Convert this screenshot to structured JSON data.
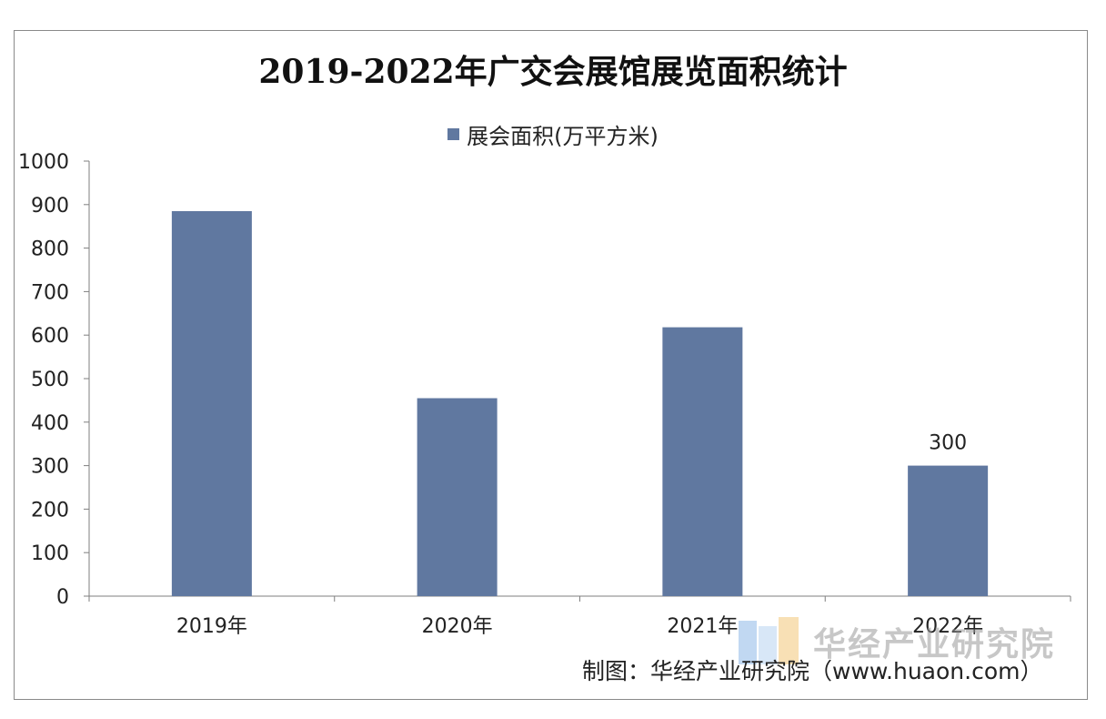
{
  "chart_data": {
    "type": "bar",
    "title": "2019-2022年广交会展馆展览面积统计",
    "legend_position": "top-center",
    "categories": [
      "2019年",
      "2020年",
      "2021年",
      "2022年"
    ],
    "series": [
      {
        "name": "展会面积(万平方米)",
        "values": [
          885,
          455,
          618,
          300
        ],
        "color": "#6078A0"
      }
    ],
    "data_labels": [
      null,
      null,
      null,
      "300"
    ],
    "ylim": [
      0,
      1000
    ],
    "yticks": [
      "0",
      "100",
      "200",
      "300",
      "400",
      "500",
      "600",
      "700",
      "800",
      "900",
      "1000"
    ],
    "grid": false
  },
  "footer": {
    "source": "制图：华经产业研究院（www.huaon.com）"
  },
  "watermark": {
    "text": "华经产业研究院"
  }
}
